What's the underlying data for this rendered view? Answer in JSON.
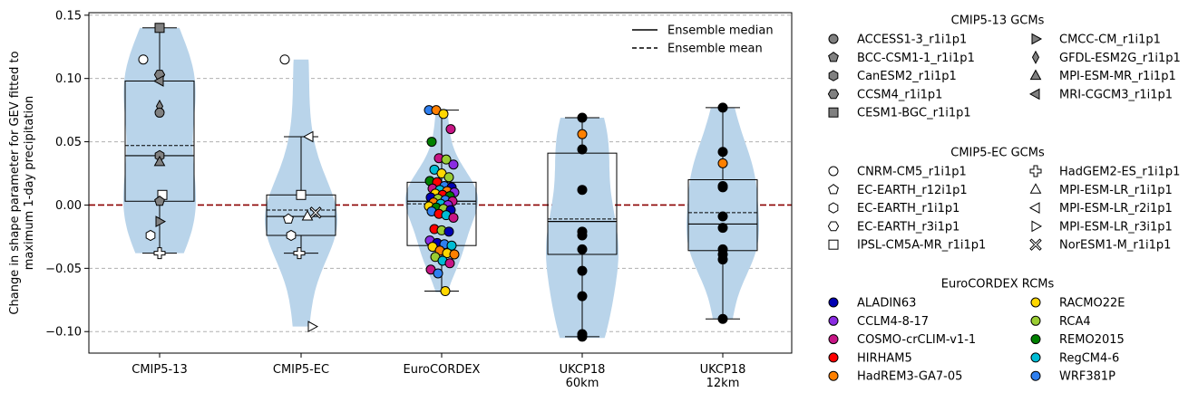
{
  "chart_data": {
    "type": "violin",
    "ylabel_lines": [
      "Change in shape parameter for GEV fitted to",
      "maximum 1-day precipitation"
    ],
    "ylim": [
      -0.117,
      0.152
    ],
    "yticks": [
      -0.1,
      -0.05,
      0.0,
      0.05,
      0.1,
      0.15
    ],
    "ytick_labels": [
      "−0.10",
      "−0.05",
      "0.00",
      "0.05",
      "0.10",
      "0.15"
    ],
    "grid": "horizontal dashed",
    "zero_line_color": "#8b0000",
    "violin_color": "#b9d4ea",
    "groups": [
      {
        "label_lines": [
          "CMIP5-13"
        ],
        "violin_min": -0.038,
        "violin_max": 0.14,
        "box": {
          "q1": 0.003,
          "q3": 0.098,
          "median": 0.039,
          "mean": 0.047,
          "whisker_low": -0.038,
          "whisker_high": 0.14
        },
        "points": [
          {
            "model": "CESM1-BGC_r1i1p1",
            "value": 0.14
          },
          {
            "model": "CNRM-CM5_r1i1p1",
            "value": 0.115
          },
          {
            "model": "CCSM4_r1i1p1",
            "value": 0.103
          },
          {
            "model": "MRI-CGCM3_r1i1p1",
            "value": 0.098
          },
          {
            "model": "GFDL-ESM2G_r1i1p1",
            "value": 0.078
          },
          {
            "model": "ACCESS1-3_r1i1p1",
            "value": 0.073
          },
          {
            "model": "CanESM2_r1i1p1",
            "value": 0.039
          },
          {
            "model": "MPI-ESM-MR_r1i1p1",
            "value": 0.034
          },
          {
            "model": "IPSL-CM5A-MR_r1i1p1",
            "value": 0.008
          },
          {
            "model": "BCC-CSM1-1_r1i1p1",
            "value": 0.003
          },
          {
            "model": "CMCC-CM_r1i1p1",
            "value": -0.013
          },
          {
            "model": "EC-EARTH_r1i1p1",
            "value": -0.024
          },
          {
            "model": "HadGEM2-ES_r1i1p1",
            "value": -0.038
          }
        ]
      },
      {
        "label_lines": [
          "CMIP5-EC"
        ],
        "violin_min": -0.096,
        "violin_max": 0.115,
        "box": {
          "q1": -0.024,
          "q3": 0.008,
          "median": -0.009,
          "mean": -0.004,
          "whisker_low": -0.038,
          "whisker_high": 0.054
        },
        "points": [
          {
            "model": "CNRM-CM5_r1i1p1",
            "value": 0.115
          },
          {
            "model": "MPI-ESM-LR_r2i1p1",
            "value": 0.054
          },
          {
            "model": "IPSL-CM5A-MR_r1i1p1",
            "value": 0.008
          },
          {
            "model": "NorESM1-M_r1i1p1",
            "value": -0.006
          },
          {
            "model": "MPI-ESM-LR_r1i1p1",
            "value": -0.009
          },
          {
            "model": "EC-EARTH_r12i1p1",
            "value": -0.011
          },
          {
            "model": "EC-EARTH_r1i1p1",
            "value": -0.024
          },
          {
            "model": "HadGEM2-ES_r1i1p1",
            "value": -0.038
          },
          {
            "model": "MPI-ESM-LR_r3i1p1",
            "value": -0.096
          }
        ]
      },
      {
        "label_lines": [
          "EuroCORDEX"
        ],
        "violin_min": -0.069,
        "violin_max": 0.076,
        "box": {
          "q1": -0.032,
          "q3": 0.018,
          "median": 0.003,
          "mean": 0.001,
          "whisker_low": -0.068,
          "whisker_high": 0.075
        },
        "points": [
          {
            "model": "WRF381P",
            "value": 0.075
          },
          {
            "model": "HadREM3-GA7-05",
            "value": 0.075
          },
          {
            "model": "RACMO22E",
            "value": 0.072
          },
          {
            "model": "COSMO-crCLIM-v1-1",
            "value": 0.06
          },
          {
            "model": "REMO2015",
            "value": 0.05
          },
          {
            "model": "COSMO-crCLIM-v1-1",
            "value": 0.037
          },
          {
            "model": "RCA4",
            "value": 0.036
          },
          {
            "model": "CCLM4-8-17",
            "value": 0.032
          },
          {
            "model": "RegCM4-6",
            "value": 0.028
          },
          {
            "model": "RACMO22E",
            "value": 0.025
          },
          {
            "model": "RCA4",
            "value": 0.022
          },
          {
            "model": "REMO2015",
            "value": 0.019
          },
          {
            "model": "HIRHAM5",
            "value": 0.018
          },
          {
            "model": "WRF381P",
            "value": 0.015
          },
          {
            "model": "ALADIN63",
            "value": 0.014
          },
          {
            "model": "COSMO-crCLIM-v1-1",
            "value": 0.013
          },
          {
            "model": "RegCM4-6",
            "value": 0.012
          },
          {
            "model": "HadREM3-GA7-05",
            "value": 0.011
          },
          {
            "model": "CCLM4-8-17",
            "value": 0.01
          },
          {
            "model": "RACMO22E",
            "value": 0.009
          },
          {
            "model": "HIRHAM5",
            "value": 0.008
          },
          {
            "model": "REMO2015",
            "value": 0.007
          },
          {
            "model": "ALADIN63",
            "value": 0.006
          },
          {
            "model": "RCA4",
            "value": 0.005
          },
          {
            "model": "WRF381P",
            "value": 0.004
          },
          {
            "model": "COSMO-crCLIM-v1-1",
            "value": 0.003
          },
          {
            "model": "HadREM3-GA7-05",
            "value": 0.002
          },
          {
            "model": "RegCM4-6",
            "value": 0.001
          },
          {
            "model": "CCLM4-8-17",
            "value": 0.0
          },
          {
            "model": "RACMO22E",
            "value": -0.001
          },
          {
            "model": "REMO2015",
            "value": -0.002
          },
          {
            "model": "RCA4",
            "value": -0.003
          },
          {
            "model": "ALADIN63",
            "value": -0.004
          },
          {
            "model": "WRF381P",
            "value": -0.005
          },
          {
            "model": "HIRHAM5",
            "value": -0.007
          },
          {
            "model": "RegCM4-6",
            "value": -0.008
          },
          {
            "model": "COSMO-crCLIM-v1-1",
            "value": -0.01
          },
          {
            "model": "HIRHAM5",
            "value": -0.019
          },
          {
            "model": "RCA4",
            "value": -0.02
          },
          {
            "model": "ALADIN63",
            "value": -0.021
          },
          {
            "model": "CCLM4-8-17",
            "value": -0.028
          },
          {
            "model": "ALADIN63",
            "value": -0.03
          },
          {
            "model": "WRF381P",
            "value": -0.031
          },
          {
            "model": "RegCM4-6",
            "value": -0.032
          },
          {
            "model": "RACMO22E",
            "value": -0.033
          },
          {
            "model": "HadREM3-GA7-05",
            "value": -0.036
          },
          {
            "model": "RACMO22E",
            "value": -0.038
          },
          {
            "model": "HadREM3-GA7-05",
            "value": -0.039
          },
          {
            "model": "RCA4",
            "value": -0.041
          },
          {
            "model": "RegCM4-6",
            "value": -0.044
          },
          {
            "model": "COSMO-crCLIM-v1-1",
            "value": -0.046
          },
          {
            "model": "COSMO-crCLIM-v1-1",
            "value": -0.051
          },
          {
            "model": "WRF381P",
            "value": -0.054
          },
          {
            "model": "RACMO22E",
            "value": -0.068
          }
        ]
      },
      {
        "label_lines": [
          "UKCP18",
          "60km"
        ],
        "violin_min": -0.105,
        "violin_max": 0.069,
        "box": {
          "q1": -0.039,
          "q3": 0.041,
          "median": -0.013,
          "mean": -0.011,
          "whisker_low": -0.104,
          "whisker_high": 0.069
        },
        "points": [
          {
            "model": "",
            "value": 0.069
          },
          {
            "model": "HadREM3-GA7-05",
            "value": 0.056
          },
          {
            "model": "",
            "value": 0.044
          },
          {
            "model": "",
            "value": 0.012
          },
          {
            "model": "",
            "value": -0.021
          },
          {
            "model": "",
            "value": -0.024
          },
          {
            "model": "",
            "value": -0.035
          },
          {
            "model": "",
            "value": -0.052
          },
          {
            "model": "",
            "value": -0.072
          },
          {
            "model": "",
            "value": -0.102
          },
          {
            "model": "",
            "value": -0.104
          }
        ]
      },
      {
        "label_lines": [
          "UKCP18",
          "12km"
        ],
        "violin_min": -0.09,
        "violin_max": 0.077,
        "box": {
          "q1": -0.036,
          "q3": 0.02,
          "median": -0.015,
          "mean": -0.006,
          "whisker_low": -0.09,
          "whisker_high": 0.077
        },
        "points": [
          {
            "model": "",
            "value": 0.077
          },
          {
            "model": "",
            "value": 0.042
          },
          {
            "model": "HadREM3-GA7-05",
            "value": 0.033
          },
          {
            "model": "",
            "value": 0.015
          },
          {
            "model": "",
            "value": 0.014
          },
          {
            "model": "",
            "value": -0.009
          },
          {
            "model": "",
            "value": -0.018
          },
          {
            "model": "",
            "value": -0.035
          },
          {
            "model": "",
            "value": -0.039
          },
          {
            "model": "",
            "value": -0.043
          },
          {
            "model": "",
            "value": -0.09
          }
        ]
      }
    ],
    "line_legend": {
      "placement": "top-right",
      "entries": [
        {
          "label": "Ensemble median",
          "style": "solid"
        },
        {
          "label": "Ensemble mean",
          "style": "dashed"
        }
      ]
    },
    "legend": {
      "placement": "outside-right",
      "sections": [
        {
          "title": "CMIP5-13 GCMs",
          "columns": [
            [
              {
                "label": "ACCESS1-3_r1i1p1",
                "marker": "circle",
                "fill": "#808080"
              },
              {
                "label": "BCC-CSM1-1_r1i1p1",
                "marker": "pentagon",
                "fill": "#808080"
              },
              {
                "label": "CanESM2_r1i1p1",
                "marker": "hexagon",
                "fill": "#808080"
              },
              {
                "label": "CCSM4_r1i1p1",
                "marker": "hexagon2",
                "fill": "#808080"
              },
              {
                "label": "CESM1-BGC_r1i1p1",
                "marker": "square",
                "fill": "#808080"
              }
            ],
            [
              {
                "label": "CMCC-CM_r1i1p1",
                "marker": "triangle-right",
                "fill": "#808080"
              },
              {
                "label": "GFDL-ESM2G_r1i1p1",
                "marker": "thin-diamond",
                "fill": "#808080"
              },
              {
                "label": "MPI-ESM-MR_r1i1p1",
                "marker": "triangle-up",
                "fill": "#808080"
              },
              {
                "label": "MRI-CGCM3_r1i1p1",
                "marker": "triangle-left",
                "fill": "#808080"
              }
            ]
          ]
        },
        {
          "title": "CMIP5-EC GCMs",
          "columns": [
            [
              {
                "label": "CNRM-CM5_r1i1p1",
                "marker": "circle",
                "fill": "#ffffff"
              },
              {
                "label": "EC-EARTH_r12i1p1",
                "marker": "pentagon",
                "fill": "#ffffff"
              },
              {
                "label": "EC-EARTH_r1i1p1",
                "marker": "hexagon",
                "fill": "#ffffff"
              },
              {
                "label": "EC-EARTH_r3i1p1",
                "marker": "hexagon2",
                "fill": "#ffffff"
              },
              {
                "label": "IPSL-CM5A-MR_r1i1p1",
                "marker": "square",
                "fill": "#ffffff"
              }
            ],
            [
              {
                "label": "HadGEM2-ES_r1i1p1",
                "marker": "plus",
                "fill": "#ffffff"
              },
              {
                "label": "MPI-ESM-LR_r1i1p1",
                "marker": "triangle-up",
                "fill": "#ffffff"
              },
              {
                "label": "MPI-ESM-LR_r2i1p1",
                "marker": "triangle-left",
                "fill": "#ffffff"
              },
              {
                "label": "MPI-ESM-LR_r3i1p1",
                "marker": "triangle-right",
                "fill": "#ffffff"
              },
              {
                "label": "NorESM1-M_r1i1p1",
                "marker": "x",
                "fill": "#ffffff"
              }
            ]
          ]
        },
        {
          "title": "EuroCORDEX RCMs",
          "columns": [
            [
              {
                "label": "ALADIN63",
                "marker": "circle",
                "fill": "#0000b3"
              },
              {
                "label": "CCLM4-8-17",
                "marker": "circle",
                "fill": "#8a2be2"
              },
              {
                "label": "COSMO-crCLIM-v1-1",
                "marker": "circle",
                "fill": "#c71585"
              },
              {
                "label": "HIRHAM5",
                "marker": "circle",
                "fill": "#ff0000"
              },
              {
                "label": "HadREM3-GA7-05",
                "marker": "circle",
                "fill": "#ff8000"
              }
            ],
            [
              {
                "label": "RACMO22E",
                "marker": "circle",
                "fill": "#ffd700"
              },
              {
                "label": "RCA4",
                "marker": "circle",
                "fill": "#9acd32"
              },
              {
                "label": "REMO2015",
                "marker": "circle",
                "fill": "#008000"
              },
              {
                "label": "RegCM4-6",
                "marker": "circle",
                "fill": "#00bcd4"
              },
              {
                "label": "WRF381P",
                "marker": "circle",
                "fill": "#2f7fef"
              }
            ]
          ]
        }
      ]
    }
  }
}
